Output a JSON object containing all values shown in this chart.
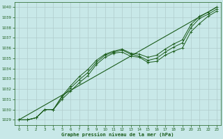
{
  "background_color": "#c8e8e8",
  "grid_color": "#b0cccc",
  "line_color": "#1a5c1a",
  "marker_color": "#1a5c1a",
  "title": "Graphe pression niveau de la mer (hPa)",
  "xlim": [
    -0.5,
    23.5
  ],
  "ylim": [
    1028.5,
    1040.5
  ],
  "yticks": [
    1029,
    1030,
    1031,
    1032,
    1033,
    1034,
    1035,
    1036,
    1037,
    1038,
    1039,
    1040
  ],
  "xticks": [
    0,
    1,
    2,
    3,
    4,
    5,
    6,
    7,
    8,
    9,
    10,
    11,
    12,
    13,
    14,
    15,
    16,
    17,
    18,
    19,
    20,
    21,
    22,
    23
  ],
  "series1_x": [
    0,
    1,
    2,
    3,
    4,
    5,
    6,
    7,
    8,
    9,
    10,
    11,
    12,
    13,
    14,
    15,
    16,
    17,
    18,
    19,
    20,
    21,
    22,
    23
  ],
  "series1_y": [
    1029.0,
    1029.0,
    1029.2,
    1030.0,
    1030.0,
    1031.0,
    1031.8,
    1032.6,
    1033.3,
    1034.4,
    1035.1,
    1035.5,
    1035.6,
    1035.2,
    1035.1,
    1034.6,
    1034.7,
    1035.3,
    1035.7,
    1036.0,
    1037.6,
    1038.4,
    1039.1,
    1039.6
  ],
  "series2_x": [
    0,
    1,
    2,
    3,
    4,
    5,
    6,
    7,
    8,
    9,
    10,
    11,
    12,
    13,
    14,
    15,
    16,
    17,
    18,
    19,
    20,
    21,
    22,
    23
  ],
  "series2_y": [
    1029.0,
    1029.0,
    1029.2,
    1030.0,
    1030.0,
    1031.2,
    1032.1,
    1032.9,
    1033.6,
    1034.6,
    1035.3,
    1035.6,
    1035.8,
    1035.4,
    1035.2,
    1034.8,
    1035.0,
    1035.6,
    1036.1,
    1036.5,
    1038.0,
    1038.9,
    1039.3,
    1039.8
  ],
  "series3_x": [
    0,
    1,
    2,
    3,
    4,
    5,
    6,
    7,
    8,
    9,
    10,
    11,
    12,
    13,
    14,
    15,
    16,
    17,
    18,
    19,
    20,
    21,
    22,
    23
  ],
  "series3_y": [
    1029.0,
    1029.0,
    1029.2,
    1030.0,
    1030.0,
    1031.3,
    1032.3,
    1033.2,
    1033.9,
    1034.8,
    1035.4,
    1035.7,
    1035.9,
    1035.5,
    1035.4,
    1035.1,
    1035.3,
    1035.9,
    1036.4,
    1036.8,
    1038.3,
    1039.1,
    1039.5,
    1040.0
  ],
  "series4_x": [
    0,
    23
  ],
  "series4_y": [
    1029.0,
    1040.0
  ]
}
